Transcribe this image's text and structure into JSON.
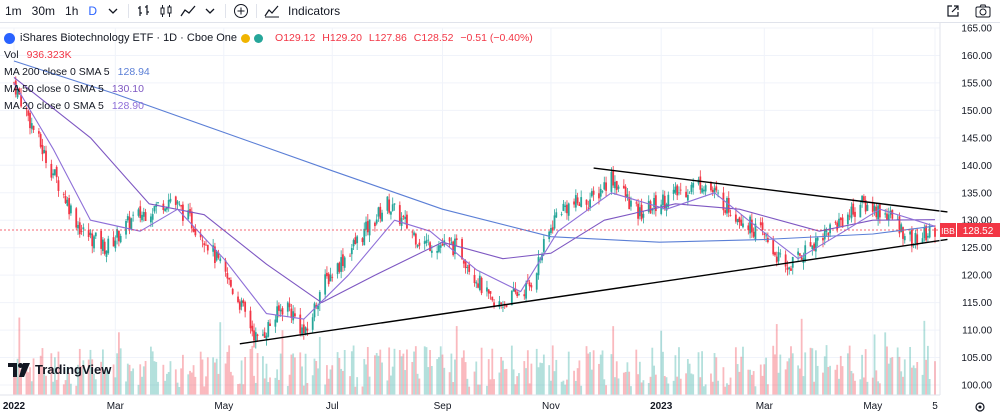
{
  "toolbar": {
    "intervals": [
      "1m",
      "30m",
      "1h",
      "D"
    ],
    "active_interval": "D",
    "indicators_label": "Indicators"
  },
  "legend": {
    "title": "iShares Biotechnology ETF · 1D · Cboe One",
    "open": "O129.12",
    "high": "H129.20",
    "low": "L127.86",
    "close": "C128.52",
    "change": "−0.51 (−0.40%)",
    "volume_label": "Vol",
    "volume_value": "936.323K",
    "ma200_label": "MA 200 close 0 SMA 5",
    "ma200_value": "128.94",
    "ma50_label": "MA 50 close 0 SMA 5",
    "ma50_value": "130.10",
    "ma20_label": "MA 20 close 0 SMA 5",
    "ma20_value": "128.90"
  },
  "logo_text": "TradingView",
  "price_tag": {
    "symbol": "IBB",
    "value": "128.52"
  },
  "colors": {
    "up": "#26a69a",
    "down": "#f23645",
    "ma200": "#5b7fd6",
    "ma50": "#7e57c2",
    "ma20": "#8e6fd8",
    "trendline": "#000000"
  },
  "chart_data": {
    "type": "candlestick",
    "ylim": [
      100,
      165
    ],
    "y_ticks": [
      "165.00",
      "160.00",
      "155.00",
      "150.00",
      "145.00",
      "140.00",
      "135.00",
      "130.00",
      "125.00",
      "120.00",
      "115.00",
      "110.00",
      "105.00",
      "100.00"
    ],
    "x_ticks": [
      "2022",
      "Mar",
      "May",
      "Jul",
      "Sep",
      "Nov",
      "2023",
      "Mar",
      "May",
      "5"
    ],
    "last_close": 128.52,
    "price_path": [
      {
        "x": "2022-01-03",
        "y": 155
      },
      {
        "x": "2022-01-20",
        "y": 142
      },
      {
        "x": "2022-02-10",
        "y": 128
      },
      {
        "x": "2022-02-24",
        "y": 125
      },
      {
        "x": "2022-03-10",
        "y": 130
      },
      {
        "x": "2022-04-01",
        "y": 134
      },
      {
        "x": "2022-04-20",
        "y": 127
      },
      {
        "x": "2022-05-10",
        "y": 115
      },
      {
        "x": "2022-05-20",
        "y": 108
      },
      {
        "x": "2022-06-05",
        "y": 115
      },
      {
        "x": "2022-06-16",
        "y": 109
      },
      {
        "x": "2022-06-25",
        "y": 118
      },
      {
        "x": "2022-07-12",
        "y": 125
      },
      {
        "x": "2022-08-01",
        "y": 133
      },
      {
        "x": "2022-08-20",
        "y": 126
      },
      {
        "x": "2022-09-10",
        "y": 125
      },
      {
        "x": "2022-09-30",
        "y": 114
      },
      {
        "x": "2022-10-20",
        "y": 118
      },
      {
        "x": "2022-11-05",
        "y": 132
      },
      {
        "x": "2022-11-25",
        "y": 134
      },
      {
        "x": "2022-12-05",
        "y": 138
      },
      {
        "x": "2022-12-20",
        "y": 131
      },
      {
        "x": "2023-01-05",
        "y": 134
      },
      {
        "x": "2023-01-25",
        "y": 137
      },
      {
        "x": "2023-02-10",
        "y": 132
      },
      {
        "x": "2023-03-01",
        "y": 127
      },
      {
        "x": "2023-03-13",
        "y": 121
      },
      {
        "x": "2023-04-01",
        "y": 127
      },
      {
        "x": "2023-04-25",
        "y": 133
      },
      {
        "x": "2023-05-10",
        "y": 131
      },
      {
        "x": "2023-05-24",
        "y": 126
      },
      {
        "x": "2023-06-05",
        "y": 128.52
      }
    ],
    "series": [
      {
        "name": "MA 200",
        "values": [
          {
            "x": "2022-01-03",
            "y": 159
          },
          {
            "x": "2022-03-01",
            "y": 153
          },
          {
            "x": "2022-05-01",
            "y": 146
          },
          {
            "x": "2022-07-01",
            "y": 139
          },
          {
            "x": "2022-09-01",
            "y": 132
          },
          {
            "x": "2022-11-01",
            "y": 127
          },
          {
            "x": "2023-01-01",
            "y": 126
          },
          {
            "x": "2023-03-01",
            "y": 126.5
          },
          {
            "x": "2023-05-01",
            "y": 127.5
          },
          {
            "x": "2023-06-05",
            "y": 128.94
          }
        ]
      },
      {
        "name": "MA 50",
        "values": [
          {
            "x": "2022-01-03",
            "y": 156
          },
          {
            "x": "2022-02-15",
            "y": 145
          },
          {
            "x": "2022-03-20",
            "y": 133
          },
          {
            "x": "2022-04-20",
            "y": 131
          },
          {
            "x": "2022-05-25",
            "y": 122
          },
          {
            "x": "2022-06-25",
            "y": 115
          },
          {
            "x": "2022-07-25",
            "y": 120
          },
          {
            "x": "2022-09-01",
            "y": 126
          },
          {
            "x": "2022-10-05",
            "y": 123
          },
          {
            "x": "2022-11-01",
            "y": 124
          },
          {
            "x": "2022-12-01",
            "y": 130
          },
          {
            "x": "2023-01-10",
            "y": 133
          },
          {
            "x": "2023-02-15",
            "y": 132
          },
          {
            "x": "2023-04-01",
            "y": 128
          },
          {
            "x": "2023-05-01",
            "y": 130
          },
          {
            "x": "2023-06-05",
            "y": 130.1
          }
        ]
      },
      {
        "name": "MA 20",
        "values": [
          {
            "x": "2022-01-03",
            "y": 155
          },
          {
            "x": "2022-01-25",
            "y": 143
          },
          {
            "x": "2022-02-15",
            "y": 130
          },
          {
            "x": "2022-03-15",
            "y": 128
          },
          {
            "x": "2022-04-05",
            "y": 132
          },
          {
            "x": "2022-05-01",
            "y": 123
          },
          {
            "x": "2022-05-25",
            "y": 113
          },
          {
            "x": "2022-06-15",
            "y": 112
          },
          {
            "x": "2022-07-10",
            "y": 120
          },
          {
            "x": "2022-08-05",
            "y": 130
          },
          {
            "x": "2022-08-25",
            "y": 128
          },
          {
            "x": "2022-09-20",
            "y": 121
          },
          {
            "x": "2022-10-15",
            "y": 117
          },
          {
            "x": "2022-11-05",
            "y": 128
          },
          {
            "x": "2022-12-05",
            "y": 135
          },
          {
            "x": "2023-01-05",
            "y": 132
          },
          {
            "x": "2023-02-01",
            "y": 135
          },
          {
            "x": "2023-02-20",
            "y": 130
          },
          {
            "x": "2023-03-20",
            "y": 123
          },
          {
            "x": "2023-04-15",
            "y": 128
          },
          {
            "x": "2023-05-05",
            "y": 132
          },
          {
            "x": "2023-06-05",
            "y": 128.9
          }
        ]
      }
    ],
    "trendlines": [
      {
        "name": "upper",
        "from": {
          "x": "2022-11-25",
          "y": 139.5
        },
        "to": {
          "x": "2023-06-12",
          "y": 131.5
        }
      },
      {
        "name": "lower",
        "from": {
          "x": "2022-05-10",
          "y": 107.5
        },
        "to": {
          "x": "2023-06-12",
          "y": 126.5
        }
      }
    ]
  }
}
